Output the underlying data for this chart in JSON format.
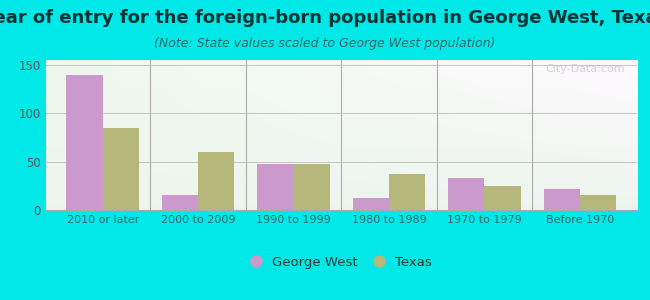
{
  "title": "Year of entry for the foreign-born population in George West, Texas",
  "subtitle": "(Note: State values scaled to George West population)",
  "categories": [
    "2010 or later",
    "2000 to 2009",
    "1990 to 1999",
    "1980 to 1989",
    "1970 to 1979",
    "Before 1970"
  ],
  "george_west": [
    140,
    15,
    48,
    12,
    33,
    22
  ],
  "texas": [
    85,
    60,
    48,
    37,
    25,
    15
  ],
  "george_west_color": "#cc99cc",
  "texas_color": "#b5b87a",
  "ylim": [
    0,
    155
  ],
  "yticks": [
    0,
    50,
    100,
    150
  ],
  "background_color": "#00e8e8",
  "legend_gw": "George West",
  "legend_tx": "Texas",
  "title_fontsize": 13,
  "subtitle_fontsize": 9,
  "bar_width": 0.38,
  "watermark": "City-Data.com"
}
